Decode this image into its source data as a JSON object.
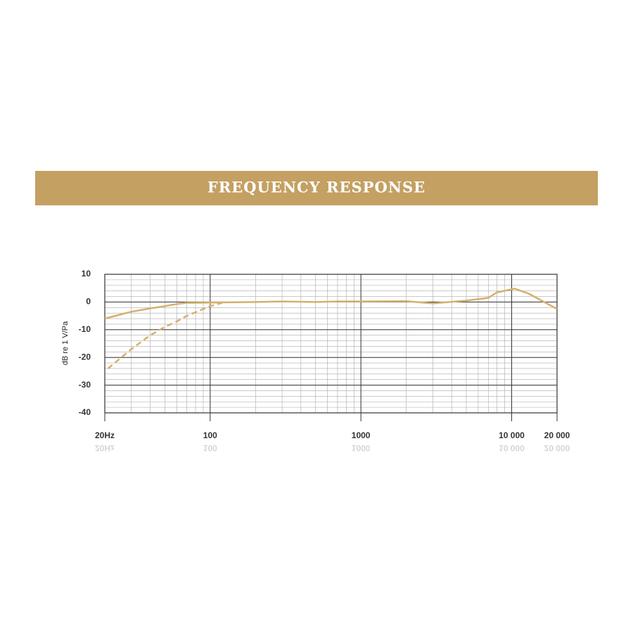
{
  "chart_data": {
    "type": "line",
    "title": "FREQUENCY RESPONSE",
    "y_label": "dB re 1 V/Pa",
    "xlim": [
      20,
      20000
    ],
    "ylim": [
      -40,
      10
    ],
    "log_x": true,
    "grid": true,
    "xticks": [
      {
        "value": 20,
        "label": "20Hz"
      },
      100,
      1000,
      {
        "value": 10000,
        "label": "10 000"
      },
      {
        "value": 20000,
        "label": "20 000"
      }
    ],
    "yticks": [
      10,
      0,
      -10,
      -20,
      -30,
      -40
    ],
    "series": [
      {
        "color": "#d4b06c",
        "dashed": false,
        "x": [
          20,
          30,
          40,
          50,
          60,
          70,
          100,
          200,
          300,
          500,
          700,
          1000,
          2000,
          3000,
          5000,
          7000,
          8000,
          10500,
          13000,
          20000
        ],
        "values": [
          -6,
          -3.5,
          -2.3,
          -1.5,
          -0.7,
          -0.3,
          -0.2,
          0,
          0.2,
          0,
          0.2,
          0.2,
          0.3,
          -0.5,
          0.5,
          1.5,
          3.5,
          4.8,
          3,
          -2.5
        ]
      },
      {
        "color": "#d4b06c",
        "dashed": true,
        "x": [
          21,
          30,
          40,
          50,
          60,
          70,
          100,
          120
        ],
        "values": [
          -24,
          -17,
          -12,
          -9,
          -7,
          -5,
          -1.5,
          -0.3
        ]
      }
    ]
  }
}
